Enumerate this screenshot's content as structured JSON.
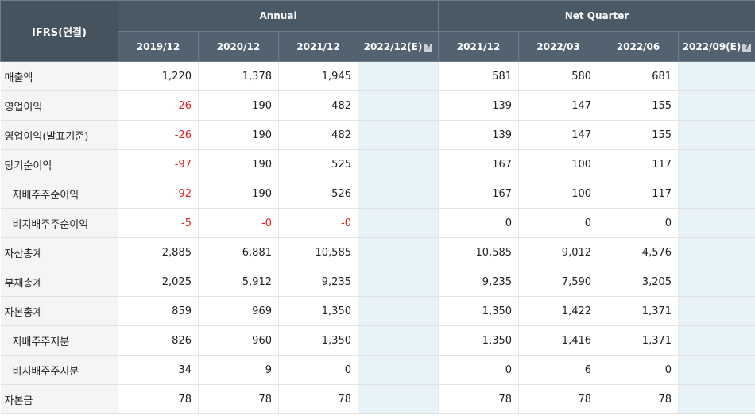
{
  "header": {
    "corner": "IFRS(연결)",
    "annual": "Annual",
    "quarter": "Net Quarter",
    "periods": [
      "2019/12",
      "2020/12",
      "2021/12",
      "2022/12(E)",
      "2021/12",
      "2022/03",
      "2022/06",
      "2022/09(E)"
    ],
    "est_icon": "?"
  },
  "rows": [
    {
      "label": "매출액",
      "values": [
        "1,220",
        "1,378",
        "1,945",
        "",
        "581",
        "580",
        "681",
        ""
      ]
    },
    {
      "label": "영업이익",
      "values": [
        "-26",
        "190",
        "482",
        "",
        "139",
        "147",
        "155",
        ""
      ]
    },
    {
      "label": "영업이익(발표기준)",
      "values": [
        "-26",
        "190",
        "482",
        "",
        "139",
        "147",
        "155",
        ""
      ]
    },
    {
      "label": "당기순이익",
      "values": [
        "-97",
        "190",
        "525",
        "",
        "167",
        "100",
        "117",
        ""
      ]
    },
    {
      "label": "지배주주순이익",
      "values": [
        "-92",
        "190",
        "526",
        "",
        "167",
        "100",
        "117",
        ""
      ]
    },
    {
      "label": "비지배주주순이익",
      "values": [
        "-5",
        "-0",
        "-0",
        "",
        "0",
        "0",
        "0",
        ""
      ]
    },
    {
      "label": "자산총계",
      "values": [
        "2,885",
        "6,881",
        "10,585",
        "",
        "10,585",
        "9,012",
        "4,576",
        ""
      ]
    },
    {
      "label": "부채총계",
      "values": [
        "2,025",
        "5,912",
        "9,235",
        "",
        "9,235",
        "7,590",
        "3,205",
        ""
      ]
    },
    {
      "label": "자본총계",
      "values": [
        "859",
        "969",
        "1,350",
        "",
        "1,350",
        "1,422",
        "1,371",
        ""
      ]
    },
    {
      "label": "지배주주지분",
      "values": [
        "826",
        "960",
        "1,350",
        "",
        "1,350",
        "1,416",
        "1,371",
        ""
      ]
    },
    {
      "label": "비지배주주지분",
      "values": [
        "34",
        "9",
        "0",
        "",
        "0",
        "6",
        "0",
        ""
      ]
    },
    {
      "label": "자본금",
      "values": [
        "78",
        "78",
        "78",
        "",
        "78",
        "78",
        "78",
        ""
      ]
    }
  ],
  "colors": {
    "header_bg": "#4a5966",
    "negative": "#e02020",
    "estimate_bg": "#e8f3f9",
    "label_bg": "#f3f5f7"
  }
}
